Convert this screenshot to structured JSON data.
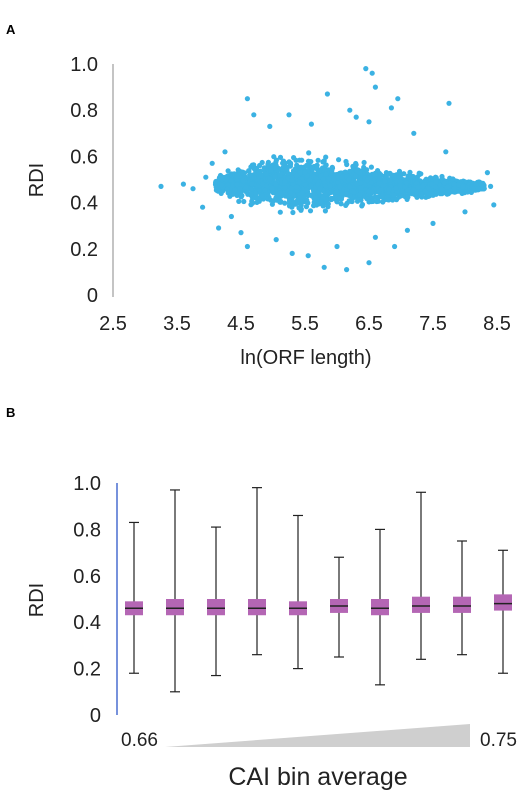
{
  "panels": {
    "a": "A",
    "b": "B"
  },
  "chart_data": [
    {
      "type": "scatter",
      "xlabel": "ln(ORF length)",
      "ylabel": "RDI",
      "xlim": [
        2.5,
        8.5
      ],
      "ylim": [
        0,
        1.0
      ],
      "xticks": [
        "2.5",
        "3.5",
        "4.5",
        "5.5",
        "6.5",
        "7.5",
        "8.5"
      ],
      "yticks": [
        "0",
        "0.2",
        "0.4",
        "0.6",
        "0.8",
        "1.0"
      ],
      "color": "#3bb2e3",
      "grid": false,
      "outlier_points": [
        {
          "x": 3.25,
          "y": 0.47
        },
        {
          "x": 3.6,
          "y": 0.48
        },
        {
          "x": 3.75,
          "y": 0.46
        },
        {
          "x": 3.9,
          "y": 0.38
        },
        {
          "x": 3.95,
          "y": 0.51
        },
        {
          "x": 4.05,
          "y": 0.57
        },
        {
          "x": 4.15,
          "y": 0.29
        },
        {
          "x": 4.25,
          "y": 0.62
        },
        {
          "x": 4.35,
          "y": 0.34
        },
        {
          "x": 4.6,
          "y": 0.85
        },
        {
          "x": 4.5,
          "y": 0.27
        },
        {
          "x": 4.7,
          "y": 0.78
        },
        {
          "x": 4.6,
          "y": 0.21
        },
        {
          "x": 4.95,
          "y": 0.73
        },
        {
          "x": 5.05,
          "y": 0.24
        },
        {
          "x": 5.25,
          "y": 0.78
        },
        {
          "x": 5.3,
          "y": 0.18
        },
        {
          "x": 5.55,
          "y": 0.17
        },
        {
          "x": 5.6,
          "y": 0.74
        },
        {
          "x": 5.8,
          "y": 0.12
        },
        {
          "x": 5.85,
          "y": 0.87
        },
        {
          "x": 6.0,
          "y": 0.21
        },
        {
          "x": 6.15,
          "y": 0.11
        },
        {
          "x": 6.2,
          "y": 0.8
        },
        {
          "x": 6.3,
          "y": 0.77
        },
        {
          "x": 6.45,
          "y": 0.98
        },
        {
          "x": 6.55,
          "y": 0.96
        },
        {
          "x": 6.6,
          "y": 0.9
        },
        {
          "x": 6.5,
          "y": 0.14
        },
        {
          "x": 6.6,
          "y": 0.25
        },
        {
          "x": 6.5,
          "y": 0.75
        },
        {
          "x": 6.85,
          "y": 0.81
        },
        {
          "x": 6.95,
          "y": 0.85
        },
        {
          "x": 6.9,
          "y": 0.21
        },
        {
          "x": 7.1,
          "y": 0.28
        },
        {
          "x": 7.2,
          "y": 0.7
        },
        {
          "x": 7.5,
          "y": 0.31
        },
        {
          "x": 7.75,
          "y": 0.83
        },
        {
          "x": 7.7,
          "y": 0.62
        },
        {
          "x": 8.0,
          "y": 0.36
        },
        {
          "x": 8.3,
          "y": 0.46
        },
        {
          "x": 8.4,
          "y": 0.47
        },
        {
          "x": 8.45,
          "y": 0.39
        },
        {
          "x": 8.35,
          "y": 0.53
        }
      ],
      "cluster": {
        "ridge": [
          {
            "x": 4.1,
            "y": 0.48,
            "spread": 0.03
          },
          {
            "x": 4.5,
            "y": 0.48,
            "spread": 0.09
          },
          {
            "x": 5.0,
            "y": 0.48,
            "spread": 0.12
          },
          {
            "x": 5.5,
            "y": 0.48,
            "spread": 0.12
          },
          {
            "x": 6.0,
            "y": 0.48,
            "spread": 0.11
          },
          {
            "x": 6.5,
            "y": 0.47,
            "spread": 0.09
          },
          {
            "x": 7.0,
            "y": 0.47,
            "spread": 0.06
          },
          {
            "x": 7.5,
            "y": 0.47,
            "spread": 0.045
          },
          {
            "x": 8.0,
            "y": 0.47,
            "spread": 0.03
          },
          {
            "x": 8.25,
            "y": 0.47,
            "spread": 0.02
          }
        ]
      }
    },
    {
      "type": "box",
      "xlabel": "CAI bin average",
      "ylabel": "RDI",
      "ylim": [
        0,
        1.0
      ],
      "yticks": [
        "0",
        "0.2",
        "0.4",
        "0.6",
        "0.8",
        "1.0"
      ],
      "x_start_label": "0.66",
      "x_end_label": "0.75",
      "box_color": "#b466b4",
      "wedge_color": "#cfcfcf",
      "boxes": [
        {
          "min": 0.18,
          "q1": 0.43,
          "median": 0.46,
          "q3": 0.49,
          "max": 0.83
        },
        {
          "min": 0.1,
          "q1": 0.43,
          "median": 0.46,
          "q3": 0.5,
          "max": 0.97
        },
        {
          "min": 0.17,
          "q1": 0.43,
          "median": 0.46,
          "q3": 0.5,
          "max": 0.81
        },
        {
          "min": 0.26,
          "q1": 0.43,
          "median": 0.46,
          "q3": 0.5,
          "max": 0.98
        },
        {
          "min": 0.2,
          "q1": 0.43,
          "median": 0.46,
          "q3": 0.49,
          "max": 0.86
        },
        {
          "min": 0.25,
          "q1": 0.44,
          "median": 0.47,
          "q3": 0.5,
          "max": 0.68
        },
        {
          "min": 0.13,
          "q1": 0.43,
          "median": 0.46,
          "q3": 0.5,
          "max": 0.8
        },
        {
          "min": 0.24,
          "q1": 0.44,
          "median": 0.47,
          "q3": 0.51,
          "max": 0.96
        },
        {
          "min": 0.26,
          "q1": 0.44,
          "median": 0.47,
          "q3": 0.51,
          "max": 0.75
        },
        {
          "min": 0.18,
          "q1": 0.45,
          "median": 0.48,
          "q3": 0.52,
          "max": 0.71
        }
      ]
    }
  ]
}
